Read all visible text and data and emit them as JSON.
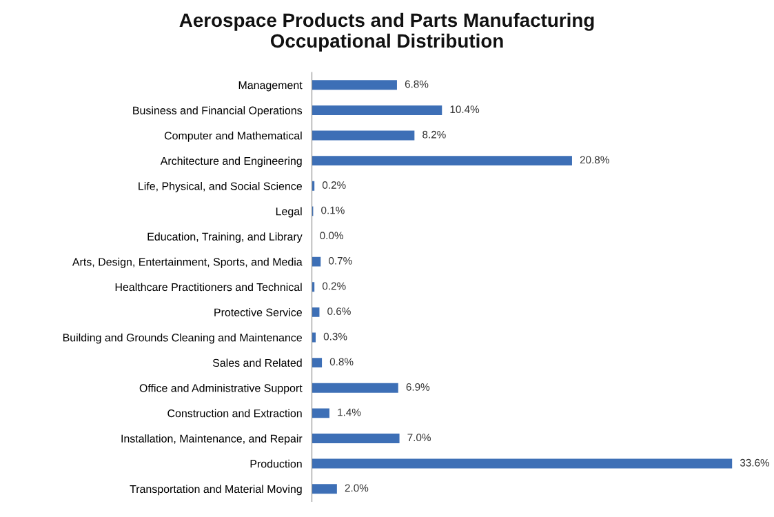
{
  "chart_data": {
    "type": "bar",
    "orientation": "horizontal",
    "title": "Aerospace Products and Parts Manufacturing\nOccupational Distribution",
    "categories": [
      "Management",
      "Business and Financial Operations",
      "Computer and Mathematical",
      "Architecture and Engineering",
      "Life, Physical, and Social Science",
      "Legal",
      "Education, Training, and Library",
      "Arts, Design, Entertainment, Sports, and Media",
      "Healthcare Practitioners and Technical",
      "Protective Service",
      "Building and Grounds Cleaning and Maintenance",
      "Sales and Related",
      "Office and Administrative Support",
      "Construction and Extraction",
      "Installation, Maintenance, and Repair",
      "Production",
      "Transportation and Material Moving"
    ],
    "values": [
      6.8,
      10.4,
      8.2,
      20.8,
      0.2,
      0.1,
      0.0,
      0.7,
      0.2,
      0.6,
      0.3,
      0.8,
      6.9,
      1.4,
      7.0,
      33.6,
      2.0
    ],
    "value_labels": [
      "6.8%",
      "10.4%",
      "8.2%",
      "20.8%",
      "0.2%",
      "0.1%",
      "0.0%",
      "0.7%",
      "0.2%",
      "0.6%",
      "0.3%",
      "0.8%",
      "6.9%",
      "1.4%",
      "7.0%",
      "33.6%",
      "2.0%"
    ],
    "color": "#3d6fb6",
    "grid": false,
    "legend": false,
    "tick_labels": "y"
  }
}
